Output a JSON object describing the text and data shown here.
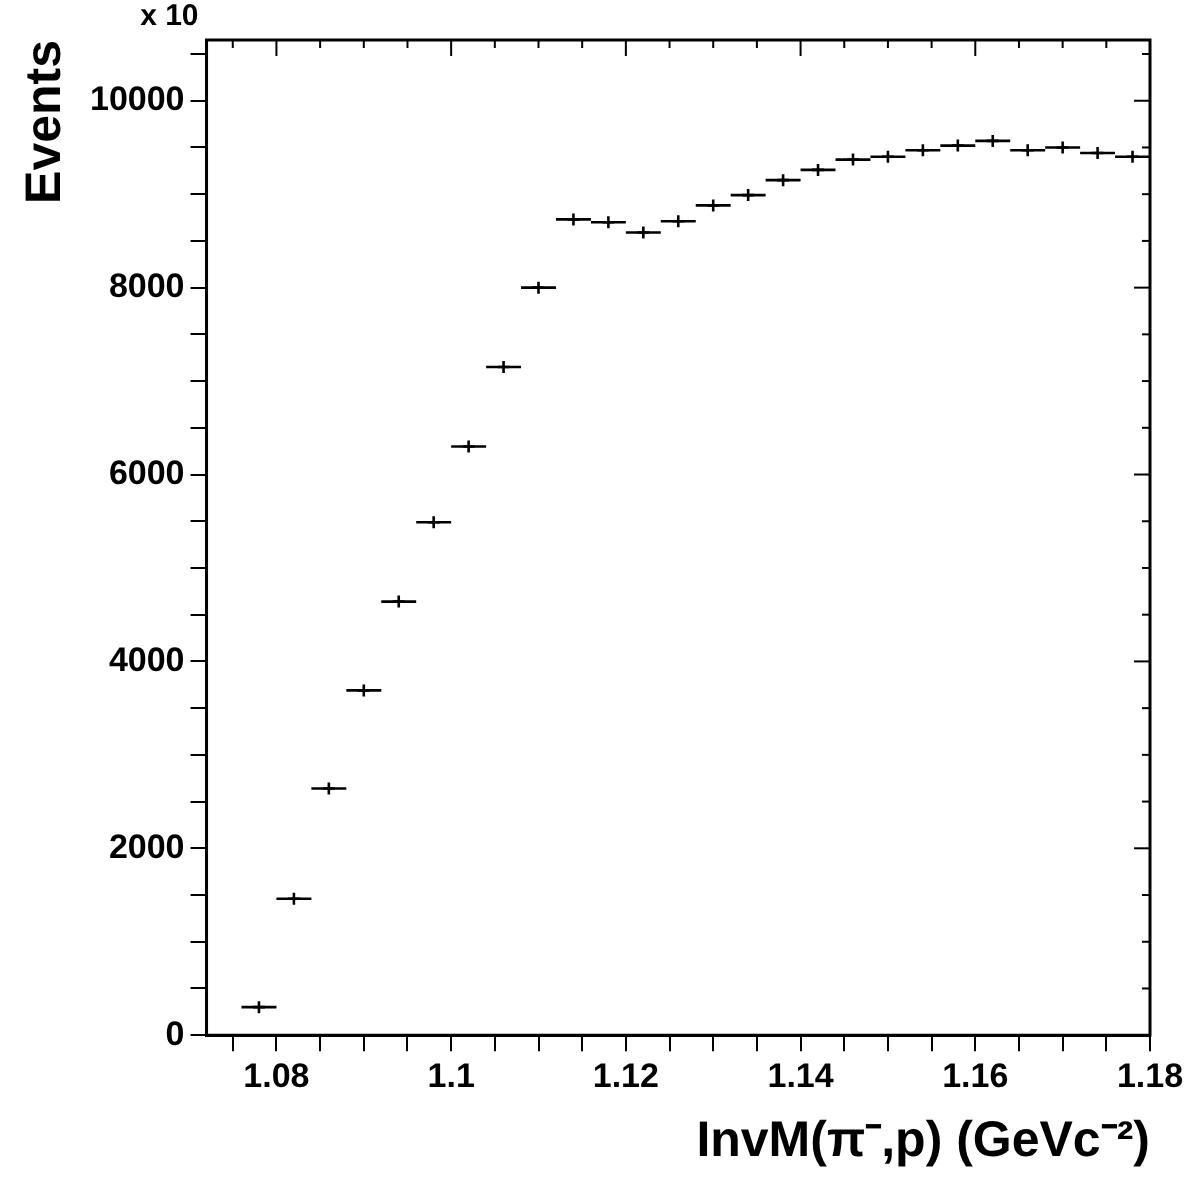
{
  "chart_data": {
    "type": "scatter",
    "ylabel": "Events",
    "xlabel": "InvM(π⁻,p) (GeVc⁻²)",
    "annotations": [
      "x 10"
    ],
    "x": [
      1.078,
      1.082,
      1.086,
      1.09,
      1.094,
      1.098,
      1.102,
      1.106,
      1.11,
      1.114,
      1.118,
      1.122,
      1.126,
      1.13,
      1.134,
      1.138,
      1.142,
      1.146,
      1.15,
      1.154,
      1.158,
      1.162,
      1.166,
      1.17,
      1.174,
      1.178
    ],
    "values": [
      300,
      1460,
      2640,
      3690,
      4640,
      5490,
      6300,
      7150,
      8000,
      8730,
      8700,
      8590,
      8710,
      8880,
      8990,
      9150,
      9260,
      9370,
      9400,
      9470,
      9520,
      9570,
      9470,
      9500,
      9440,
      9400
    ],
    "xerrors": [
      0.002,
      0.002,
      0.002,
      0.002,
      0.002,
      0.002,
      0.002,
      0.002,
      0.002,
      0.002,
      0.002,
      0.002,
      0.002,
      0.002,
      0.002,
      0.002,
      0.002,
      0.002,
      0.002,
      0.002,
      0.002,
      0.002,
      0.002,
      0.002,
      0.002,
      0.002
    ],
    "color": "#000000",
    "marker": "cross",
    "xlim": [
      1.072,
      1.18
    ],
    "xticks": [
      {
        "value": 1.075,
        "label": null
      },
      1.08,
      {
        "value": 1.085,
        "label": null
      },
      {
        "value": 1.09,
        "label": null
      },
      {
        "value": 1.095,
        "label": null
      },
      1.1,
      {
        "value": 1.105,
        "label": null
      },
      {
        "value": 1.11,
        "label": null
      },
      {
        "value": 1.115,
        "label": null
      },
      1.12,
      {
        "value": 1.125,
        "label": null
      },
      {
        "value": 1.13,
        "label": null
      },
      {
        "value": 1.135,
        "label": null
      },
      1.14,
      {
        "value": 1.145,
        "label": null
      },
      {
        "value": 1.15,
        "label": null
      },
      {
        "value": 1.155,
        "label": null
      },
      1.16,
      {
        "value": 1.165,
        "label": null
      },
      {
        "value": 1.17,
        "label": null
      },
      {
        "value": 1.175,
        "label": null
      },
      1.18
    ],
    "ylim": [
      0,
      10650
    ],
    "yticks": [
      0,
      {
        "value": 500,
        "label": null
      },
      {
        "value": 1000,
        "label": null
      },
      {
        "value": 1500,
        "label": null
      },
      2000,
      {
        "value": 2500,
        "label": null
      },
      {
        "value": 3000,
        "label": null
      },
      {
        "value": 3500,
        "label": null
      },
      4000,
      {
        "value": 4500,
        "label": null
      },
      {
        "value": 5000,
        "label": null
      },
      {
        "value": 5500,
        "label": null
      },
      6000,
      {
        "value": 6500,
        "label": null
      },
      {
        "value": 7000,
        "label": null
      },
      {
        "value": 7500,
        "label": null
      },
      8000,
      {
        "value": 8500,
        "label": null
      },
      {
        "value": 9000,
        "label": null
      },
      {
        "value": 9500,
        "label": null
      },
      10000,
      {
        "value": 10500,
        "label": null
      }
    ],
    "grid": false,
    "legend": false
  }
}
